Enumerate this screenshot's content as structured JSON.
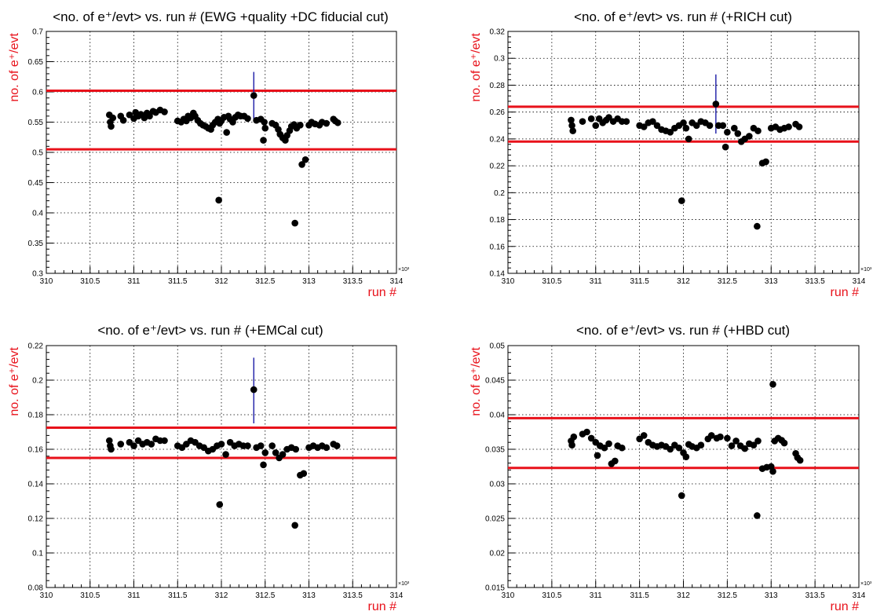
{
  "colors": {
    "cut_line": "#e8111a",
    "axis_label": "#e8111a",
    "marker": "#000000",
    "error_bar": "#1a1aa6",
    "grid": "#000000"
  },
  "chart_data": [
    {
      "type": "scatter",
      "title": "<no. of e⁺/evt> vs. run # (EWG +quality +DC fiducial cut)",
      "xlabel": "run #",
      "ylabel": "no. of e⁺/evt",
      "x_exponent_label": "×10³",
      "xlim": [
        310,
        314
      ],
      "ylim": [
        0.3,
        0.7
      ],
      "x_ticks": [
        310,
        310.5,
        311,
        311.5,
        312,
        312.5,
        313,
        313.5,
        314
      ],
      "y_ticks": [
        0.3,
        0.35,
        0.4,
        0.45,
        0.5,
        0.55,
        0.6,
        0.65,
        0.7
      ],
      "x_tick_labels": [
        "310",
        "310.5",
        "311",
        "311.5",
        "312",
        "312.5",
        "313",
        "313.5",
        "314"
      ],
      "y_tick_labels": [
        "0.3",
        "0.35",
        "0.4",
        "0.45",
        "0.5",
        "0.55",
        "0.6",
        "0.65",
        "0.7"
      ],
      "grid": true,
      "cut_lines": [
        0.602,
        0.505
      ],
      "errorbar": {
        "x": 312.37,
        "y": 0.594,
        "low": 0.555,
        "high": 0.633
      },
      "points": [
        [
          310.72,
          0.562
        ],
        [
          310.73,
          0.55
        ],
        [
          310.74,
          0.543
        ],
        [
          310.76,
          0.557
        ],
        [
          310.85,
          0.56
        ],
        [
          310.88,
          0.553
        ],
        [
          310.95,
          0.562
        ],
        [
          311.0,
          0.556
        ],
        [
          311.02,
          0.566
        ],
        [
          311.05,
          0.56
        ],
        [
          311.08,
          0.563
        ],
        [
          311.12,
          0.557
        ],
        [
          311.15,
          0.565
        ],
        [
          311.18,
          0.56
        ],
        [
          311.22,
          0.568
        ],
        [
          311.25,
          0.566
        ],
        [
          311.3,
          0.57
        ],
        [
          311.35,
          0.567
        ],
        [
          311.5,
          0.552
        ],
        [
          311.54,
          0.55
        ],
        [
          311.57,
          0.555
        ],
        [
          311.6,
          0.552
        ],
        [
          311.62,
          0.56
        ],
        [
          311.65,
          0.557
        ],
        [
          311.68,
          0.565
        ],
        [
          311.7,
          0.56
        ],
        [
          311.73,
          0.553
        ],
        [
          311.76,
          0.548
        ],
        [
          311.79,
          0.545
        ],
        [
          311.82,
          0.543
        ],
        [
          311.85,
          0.54
        ],
        [
          311.88,
          0.538
        ],
        [
          311.9,
          0.545
        ],
        [
          311.93,
          0.55
        ],
        [
          311.96,
          0.555
        ],
        [
          311.98,
          0.548
        ],
        [
          312.0,
          0.552
        ],
        [
          312.03,
          0.558
        ],
        [
          312.06,
          0.533
        ],
        [
          312.08,
          0.56
        ],
        [
          312.1,
          0.555
        ],
        [
          312.13,
          0.55
        ],
        [
          312.16,
          0.558
        ],
        [
          312.19,
          0.562
        ],
        [
          312.22,
          0.56
        ],
        [
          312.26,
          0.56
        ],
        [
          312.3,
          0.556
        ],
        [
          312.4,
          0.553
        ],
        [
          312.45,
          0.555
        ],
        [
          312.49,
          0.55
        ],
        [
          312.5,
          0.54
        ],
        [
          312.48,
          0.52
        ],
        [
          312.58,
          0.548
        ],
        [
          312.62,
          0.545
        ],
        [
          312.65,
          0.538
        ],
        [
          312.67,
          0.53
        ],
        [
          312.7,
          0.524
        ],
        [
          312.73,
          0.52
        ],
        [
          312.75,
          0.528
        ],
        [
          312.78,
          0.536
        ],
        [
          312.8,
          0.543
        ],
        [
          312.83,
          0.546
        ],
        [
          312.86,
          0.54
        ],
        [
          312.9,
          0.545
        ],
        [
          312.92,
          0.48
        ],
        [
          312.96,
          0.488
        ],
        [
          313.0,
          0.545
        ],
        [
          313.03,
          0.55
        ],
        [
          313.07,
          0.547
        ],
        [
          313.12,
          0.545
        ],
        [
          313.15,
          0.55
        ],
        [
          313.2,
          0.548
        ],
        [
          313.28,
          0.555
        ],
        [
          313.3,
          0.552
        ],
        [
          313.33,
          0.549
        ],
        [
          311.97,
          0.421
        ],
        [
          312.84,
          0.383
        ],
        [
          312.37,
          0.594
        ]
      ]
    },
    {
      "type": "scatter",
      "title": "<no. of e⁺/evt> vs. run # (+RICH cut)",
      "xlabel": "run #",
      "ylabel": "no. of e⁺/evt",
      "x_exponent_label": "×10³",
      "xlim": [
        310,
        314
      ],
      "ylim": [
        0.14,
        0.32
      ],
      "x_ticks": [
        310,
        310.5,
        311,
        311.5,
        312,
        312.5,
        313,
        313.5,
        314
      ],
      "y_ticks": [
        0.14,
        0.16,
        0.18,
        0.2,
        0.22,
        0.24,
        0.26,
        0.28,
        0.3,
        0.32
      ],
      "x_tick_labels": [
        "310",
        "310.5",
        "311",
        "311.5",
        "312",
        "312.5",
        "313",
        "313.5",
        "314"
      ],
      "y_tick_labels": [
        "0.14",
        "0.16",
        "0.18",
        "0.2",
        "0.22",
        "0.24",
        "0.26",
        "0.28",
        "0.3",
        "0.32"
      ],
      "grid": true,
      "cut_lines": [
        0.264,
        0.238
      ],
      "errorbar": {
        "x": 312.37,
        "y": 0.266,
        "low": 0.244,
        "high": 0.288
      },
      "points": [
        [
          310.72,
          0.254
        ],
        [
          310.73,
          0.25
        ],
        [
          310.74,
          0.246
        ],
        [
          310.85,
          0.253
        ],
        [
          310.95,
          0.255
        ],
        [
          311.0,
          0.25
        ],
        [
          311.04,
          0.255
        ],
        [
          311.08,
          0.252
        ],
        [
          311.12,
          0.254
        ],
        [
          311.15,
          0.256
        ],
        [
          311.2,
          0.253
        ],
        [
          311.25,
          0.255
        ],
        [
          311.3,
          0.253
        ],
        [
          311.35,
          0.253
        ],
        [
          311.5,
          0.25
        ],
        [
          311.55,
          0.249
        ],
        [
          311.6,
          0.252
        ],
        [
          311.65,
          0.253
        ],
        [
          311.7,
          0.25
        ],
        [
          311.75,
          0.247
        ],
        [
          311.8,
          0.246
        ],
        [
          311.85,
          0.245
        ],
        [
          311.9,
          0.248
        ],
        [
          311.95,
          0.25
        ],
        [
          312.0,
          0.252
        ],
        [
          312.03,
          0.248
        ],
        [
          312.06,
          0.24
        ],
        [
          312.1,
          0.252
        ],
        [
          312.15,
          0.25
        ],
        [
          312.2,
          0.253
        ],
        [
          312.25,
          0.252
        ],
        [
          312.3,
          0.25
        ],
        [
          312.4,
          0.25
        ],
        [
          312.45,
          0.25
        ],
        [
          312.5,
          0.245
        ],
        [
          312.48,
          0.234
        ],
        [
          312.58,
          0.248
        ],
        [
          312.62,
          0.244
        ],
        [
          312.66,
          0.238
        ],
        [
          312.7,
          0.24
        ],
        [
          312.75,
          0.242
        ],
        [
          312.8,
          0.248
        ],
        [
          312.85,
          0.246
        ],
        [
          312.9,
          0.222
        ],
        [
          312.94,
          0.223
        ],
        [
          313.0,
          0.248
        ],
        [
          313.05,
          0.249
        ],
        [
          313.1,
          0.247
        ],
        [
          313.15,
          0.248
        ],
        [
          313.2,
          0.249
        ],
        [
          313.28,
          0.251
        ],
        [
          313.32,
          0.249
        ],
        [
          311.98,
          0.194
        ],
        [
          312.84,
          0.175
        ],
        [
          312.37,
          0.266
        ]
      ]
    },
    {
      "type": "scatter",
      "title": "<no. of e⁺/evt> vs. run # (+EMCal cut)",
      "xlabel": "run #",
      "ylabel": "no. of e⁺/evt",
      "x_exponent_label": "×10³",
      "xlim": [
        310,
        314
      ],
      "ylim": [
        0.08,
        0.22
      ],
      "x_ticks": [
        310,
        310.5,
        311,
        311.5,
        312,
        312.5,
        313,
        313.5,
        314
      ],
      "y_ticks": [
        0.08,
        0.1,
        0.12,
        0.14,
        0.16,
        0.18,
        0.2,
        0.22
      ],
      "x_tick_labels": [
        "310",
        "310.5",
        "311",
        "311.5",
        "312",
        "312.5",
        "313",
        "313.5",
        "314"
      ],
      "y_tick_labels": [
        "0.08",
        "0.1",
        "0.12",
        "0.14",
        "0.16",
        "0.18",
        "0.2",
        "0.22"
      ],
      "grid": true,
      "cut_lines": [
        0.1725,
        0.155
      ],
      "errorbar": {
        "x": 312.37,
        "y": 0.1945,
        "low": 0.175,
        "high": 0.213
      },
      "points": [
        [
          310.72,
          0.165
        ],
        [
          310.73,
          0.162
        ],
        [
          310.74,
          0.16
        ],
        [
          310.85,
          0.163
        ],
        [
          310.95,
          0.164
        ],
        [
          311.0,
          0.162
        ],
        [
          311.05,
          0.165
        ],
        [
          311.1,
          0.163
        ],
        [
          311.15,
          0.164
        ],
        [
          311.2,
          0.163
        ],
        [
          311.25,
          0.166
        ],
        [
          311.3,
          0.165
        ],
        [
          311.35,
          0.165
        ],
        [
          311.5,
          0.162
        ],
        [
          311.55,
          0.161
        ],
        [
          311.6,
          0.163
        ],
        [
          311.65,
          0.165
        ],
        [
          311.7,
          0.164
        ],
        [
          311.75,
          0.162
        ],
        [
          311.8,
          0.161
        ],
        [
          311.85,
          0.159
        ],
        [
          311.9,
          0.16
        ],
        [
          311.95,
          0.162
        ],
        [
          312.0,
          0.163
        ],
        [
          312.05,
          0.157
        ],
        [
          312.1,
          0.164
        ],
        [
          312.15,
          0.162
        ],
        [
          312.2,
          0.163
        ],
        [
          312.25,
          0.162
        ],
        [
          312.3,
          0.162
        ],
        [
          312.4,
          0.161
        ],
        [
          312.45,
          0.162
        ],
        [
          312.5,
          0.158
        ],
        [
          312.48,
          0.151
        ],
        [
          312.58,
          0.162
        ],
        [
          312.62,
          0.158
        ],
        [
          312.66,
          0.155
        ],
        [
          312.7,
          0.157
        ],
        [
          312.75,
          0.16
        ],
        [
          312.8,
          0.161
        ],
        [
          312.85,
          0.16
        ],
        [
          312.9,
          0.145
        ],
        [
          312.94,
          0.146
        ],
        [
          313.0,
          0.161
        ],
        [
          313.05,
          0.162
        ],
        [
          313.1,
          0.161
        ],
        [
          313.15,
          0.162
        ],
        [
          313.2,
          0.161
        ],
        [
          313.28,
          0.163
        ],
        [
          313.32,
          0.162
        ],
        [
          311.98,
          0.128
        ],
        [
          312.84,
          0.116
        ],
        [
          312.37,
          0.1945
        ]
      ]
    },
    {
      "type": "scatter",
      "title": "<no. of e⁺/evt> vs. run # (+HBD cut)",
      "xlabel": "run #",
      "ylabel": "no. of e⁺/evt",
      "x_exponent_label": "×10³",
      "xlim": [
        310,
        314
      ],
      "ylim": [
        0.015,
        0.05
      ],
      "x_ticks": [
        310,
        310.5,
        311,
        311.5,
        312,
        312.5,
        313,
        313.5,
        314
      ],
      "y_ticks": [
        0.015,
        0.02,
        0.025,
        0.03,
        0.035,
        0.04,
        0.045,
        0.05
      ],
      "x_tick_labels": [
        "310",
        "310.5",
        "311",
        "311.5",
        "312",
        "312.5",
        "313",
        "313.5",
        "314"
      ],
      "y_tick_labels": [
        "0.015",
        "0.02",
        "0.025",
        "0.03",
        "0.035",
        "0.04",
        "0.045",
        "0.05"
      ],
      "grid": true,
      "cut_lines": [
        0.0395,
        0.0323
      ],
      "errorbar": null,
      "points": [
        [
          310.72,
          0.0362
        ],
        [
          310.73,
          0.0356
        ],
        [
          310.75,
          0.0368
        ],
        [
          310.85,
          0.0372
        ],
        [
          310.9,
          0.0375
        ],
        [
          310.95,
          0.0366
        ],
        [
          311.0,
          0.036
        ],
        [
          311.02,
          0.0341
        ],
        [
          311.05,
          0.0355
        ],
        [
          311.1,
          0.0352
        ],
        [
          311.15,
          0.0358
        ],
        [
          311.18,
          0.0329
        ],
        [
          311.22,
          0.0333
        ],
        [
          311.25,
          0.0355
        ],
        [
          311.3,
          0.0352
        ],
        [
          311.5,
          0.0365
        ],
        [
          311.55,
          0.037
        ],
        [
          311.6,
          0.036
        ],
        [
          311.65,
          0.0356
        ],
        [
          311.7,
          0.0354
        ],
        [
          311.75,
          0.0356
        ],
        [
          311.8,
          0.0354
        ],
        [
          311.85,
          0.035
        ],
        [
          311.9,
          0.0356
        ],
        [
          311.95,
          0.0352
        ],
        [
          312.0,
          0.0345
        ],
        [
          312.03,
          0.0339
        ],
        [
          312.06,
          0.0357
        ],
        [
          312.1,
          0.0354
        ],
        [
          312.15,
          0.0352
        ],
        [
          312.2,
          0.0356
        ],
        [
          312.28,
          0.0365
        ],
        [
          312.32,
          0.037
        ],
        [
          312.38,
          0.0366
        ],
        [
          312.42,
          0.0368
        ],
        [
          312.5,
          0.0366
        ],
        [
          312.55,
          0.0355
        ],
        [
          312.6,
          0.0362
        ],
        [
          312.65,
          0.0355
        ],
        [
          312.7,
          0.0351
        ],
        [
          312.75,
          0.0358
        ],
        [
          312.8,
          0.0356
        ],
        [
          312.85,
          0.0362
        ],
        [
          312.9,
          0.0322
        ],
        [
          312.95,
          0.0324
        ],
        [
          313.0,
          0.0325
        ],
        [
          313.02,
          0.0318
        ],
        [
          313.04,
          0.0362
        ],
        [
          313.08,
          0.0366
        ],
        [
          313.12,
          0.0363
        ],
        [
          313.15,
          0.0359
        ],
        [
          313.28,
          0.0344
        ],
        [
          313.3,
          0.0338
        ],
        [
          313.33,
          0.0334
        ],
        [
          311.98,
          0.0283
        ],
        [
          312.84,
          0.0254
        ],
        [
          313.02,
          0.0444
        ]
      ]
    }
  ]
}
